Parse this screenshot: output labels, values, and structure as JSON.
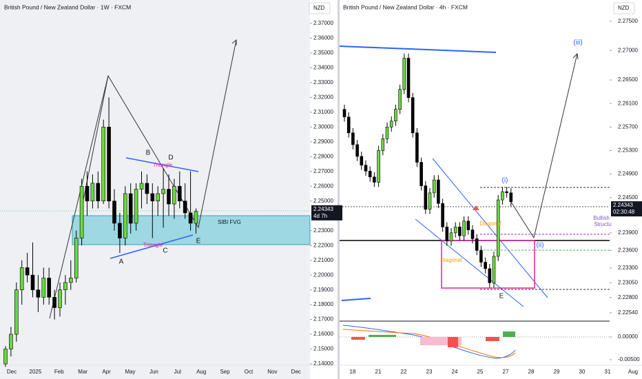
{
  "chart_data": [
    {
      "type": "candlestick",
      "title": "British Pound / New Zealand Dollar · 1W · FXCM",
      "currency": "NZD",
      "categories": [
        "Dec",
        "2025",
        "Feb",
        "Mar",
        "Apr",
        "May",
        "Jun",
        "Jul",
        "Aug",
        "Sep",
        "Oct",
        "Nov",
        "Dec"
      ],
      "open": [
        2.14,
        2.15,
        2.16,
        2.19,
        2.205,
        2.2,
        2.19,
        2.185,
        2.198,
        2.185,
        2.178,
        2.19,
        2.195,
        2.198,
        2.225,
        2.26,
        2.25,
        2.262,
        2.25,
        2.3,
        2.25,
        2.235,
        2.225,
        2.255,
        2.235,
        2.258,
        2.262,
        2.255,
        2.25,
        2.255,
        2.258,
        2.248,
        2.26,
        2.25,
        2.242,
        2.235
      ],
      "high": [
        2.152,
        2.165,
        2.195,
        2.21,
        2.215,
        2.222,
        2.2,
        2.205,
        2.205,
        2.19,
        2.195,
        2.2,
        2.21,
        2.23,
        2.265,
        2.27,
        2.268,
        2.27,
        2.305,
        2.32,
        2.258,
        2.242,
        2.26,
        2.262,
        2.262,
        2.27,
        2.268,
        2.262,
        2.26,
        2.272,
        2.268,
        2.265,
        2.27,
        2.262,
        2.27,
        2.245
      ],
      "low": [
        2.138,
        2.145,
        2.155,
        2.18,
        2.195,
        2.185,
        2.175,
        2.18,
        2.18,
        2.17,
        2.172,
        2.18,
        2.19,
        2.195,
        2.22,
        2.24,
        2.245,
        2.245,
        2.248,
        2.245,
        2.23,
        2.215,
        2.22,
        2.228,
        2.23,
        2.245,
        2.248,
        2.225,
        2.24,
        2.232,
        2.24,
        2.238,
        2.245,
        2.238,
        2.23,
        2.228
      ],
      "close": [
        2.15,
        2.16,
        2.19,
        2.205,
        2.2,
        2.19,
        2.185,
        2.198,
        2.185,
        2.178,
        2.19,
        2.195,
        2.198,
        2.225,
        2.26,
        2.25,
        2.262,
        2.25,
        2.3,
        2.25,
        2.235,
        2.225,
        2.255,
        2.235,
        2.258,
        2.262,
        2.255,
        2.25,
        2.255,
        2.258,
        2.248,
        2.26,
        2.25,
        2.242,
        2.235,
        2.243
      ],
      "up_color": "#6bd63f",
      "down_color": "#000000",
      "ylim": [
        2.1391,
        2.3858
      ],
      "yticks": [
        {
          "value": 2.37,
          "label": "2.37000"
        },
        {
          "value": 2.36,
          "label": "2.36000"
        },
        {
          "value": 2.35,
          "label": "2.35000"
        },
        {
          "value": 2.34,
          "label": "2.34000"
        },
        {
          "value": 2.33,
          "label": "2.33000"
        },
        {
          "value": 2.32,
          "label": "2.32000"
        },
        {
          "value": 2.31,
          "label": "2.31000"
        },
        {
          "value": 2.3,
          "label": "2.30000"
        },
        {
          "value": 2.29,
          "label": "2.29000"
        },
        {
          "value": 2.28,
          "label": "2.28000"
        },
        {
          "value": 2.27,
          "label": "2.27000"
        },
        {
          "value": 2.26,
          "label": "2.26000"
        },
        {
          "value": 2.25,
          "label": "2.25000"
        },
        {
          "value": 2.23,
          "label": "2.23000"
        },
        {
          "value": 2.22,
          "label": "2.22000"
        },
        {
          "value": 2.21,
          "label": "2.21000"
        },
        {
          "value": 2.2,
          "label": "2.20000"
        },
        {
          "value": 2.19,
          "label": "2.19000"
        },
        {
          "value": 2.18,
          "label": "2.18000"
        },
        {
          "value": 2.17,
          "label": "2.17000"
        },
        {
          "value": 2.16,
          "label": "2.16000"
        },
        {
          "value": 2.15,
          "label": "2.15000"
        },
        {
          "value": 2.14,
          "label": "2.14000"
        }
      ],
      "last_price": 2.24343,
      "countdown": "4d 7h",
      "annotations": [
        "A",
        "B",
        "C",
        "D",
        "E",
        "Triangle",
        "Triangle",
        "SIBI FVG"
      ]
    },
    {
      "type": "candlestick",
      "title": "British Pound / New Zealand Dollar · 4h · FXCM",
      "currency": "NZD",
      "categories": [
        "18",
        "21",
        "22",
        "23",
        "24",
        "25",
        "27",
        "28",
        "29",
        "30",
        "31",
        "Aug"
      ],
      "open": [
        2.26,
        2.2587,
        2.256,
        2.254,
        2.252,
        2.2505,
        2.2495,
        2.2485,
        2.2476,
        2.253,
        2.255,
        2.257,
        2.258,
        2.26,
        2.2634,
        2.2687,
        2.262,
        2.256,
        2.251,
        2.247,
        2.243,
        2.2458,
        2.248,
        2.244,
        2.24,
        2.2376,
        2.239,
        2.24,
        2.2385,
        2.241,
        2.2395,
        2.238,
        2.236,
        2.234,
        2.2329,
        2.2305,
        2.235,
        2.2446,
        2.246,
        2.2458
      ],
      "high": [
        2.2608,
        2.2595,
        2.2568,
        2.2548,
        2.2528,
        2.2513,
        2.2503,
        2.2493,
        2.2538,
        2.2558,
        2.2578,
        2.2588,
        2.2608,
        2.2642,
        2.2695,
        2.2695,
        2.2628,
        2.2568,
        2.2518,
        2.2478,
        2.2466,
        2.2488,
        2.2488,
        2.2448,
        2.2408,
        2.2398,
        2.2408,
        2.2408,
        2.2418,
        2.2418,
        2.2403,
        2.2388,
        2.2368,
        2.2348,
        2.2337,
        2.2358,
        2.2454,
        2.2468,
        2.2468,
        2.2466
      ],
      "low": [
        2.2579,
        2.2552,
        2.2532,
        2.2512,
        2.2497,
        2.2487,
        2.2477,
        2.2468,
        2.2468,
        2.2522,
        2.2542,
        2.2562,
        2.2572,
        2.2592,
        2.2626,
        2.2612,
        2.2552,
        2.2502,
        2.2462,
        2.2422,
        2.2422,
        2.245,
        2.2432,
        2.2392,
        2.2368,
        2.2368,
        2.2382,
        2.2377,
        2.2377,
        2.2387,
        2.2372,
        2.2352,
        2.2332,
        2.2321,
        2.2297,
        2.2297,
        2.2342,
        2.2438,
        2.245,
        2.2435
      ],
      "close": [
        2.2587,
        2.256,
        2.254,
        2.252,
        2.2505,
        2.2495,
        2.2485,
        2.2476,
        2.253,
        2.255,
        2.257,
        2.258,
        2.26,
        2.2634,
        2.2687,
        2.262,
        2.256,
        2.251,
        2.247,
        2.243,
        2.2458,
        2.248,
        2.244,
        2.24,
        2.2376,
        2.239,
        2.24,
        2.2385,
        2.241,
        2.2395,
        2.238,
        2.236,
        2.234,
        2.2329,
        2.2305,
        2.235,
        2.2446,
        2.246,
        2.2458,
        2.2443
      ],
      "up_color": "#6bd63f",
      "down_color": "#000000",
      "ylim": [
        2.2241,
        2.2786
      ],
      "yticks": [
        {
          "value": 2.275,
          "label": "2.27500"
        },
        {
          "value": 2.27,
          "label": "2.27000"
        },
        {
          "value": 2.265,
          "label": "2.26500"
        },
        {
          "value": 2.261,
          "label": "2.26100"
        },
        {
          "value": 2.257,
          "label": "2.25700"
        },
        {
          "value": 2.253,
          "label": "2.25300"
        },
        {
          "value": 2.249,
          "label": "2.24900"
        },
        {
          "value": 2.245,
          "label": "2.24500"
        },
        {
          "value": 2.239,
          "label": "2.23900"
        },
        {
          "value": 2.236,
          "label": "2.23600"
        },
        {
          "value": 2.233,
          "label": "2.23300"
        },
        {
          "value": 2.2305,
          "label": "2.23050"
        },
        {
          "value": 2.228,
          "label": "2.22800"
        },
        {
          "value": 2.2254,
          "label": "2.22540"
        }
      ],
      "last_price": 2.24343,
      "countdown": "02:30:48",
      "oscillator_ticks": [
        {
          "value": 0,
          "label": "0.00000"
        },
        {
          "value": -0.005,
          "label": "-0.00500"
        }
      ],
      "annotations": [
        "(i)",
        "(ii)",
        "(iii)",
        "E",
        "Diagonal",
        "Diagonal",
        "Bullish",
        "Structu"
      ]
    }
  ]
}
